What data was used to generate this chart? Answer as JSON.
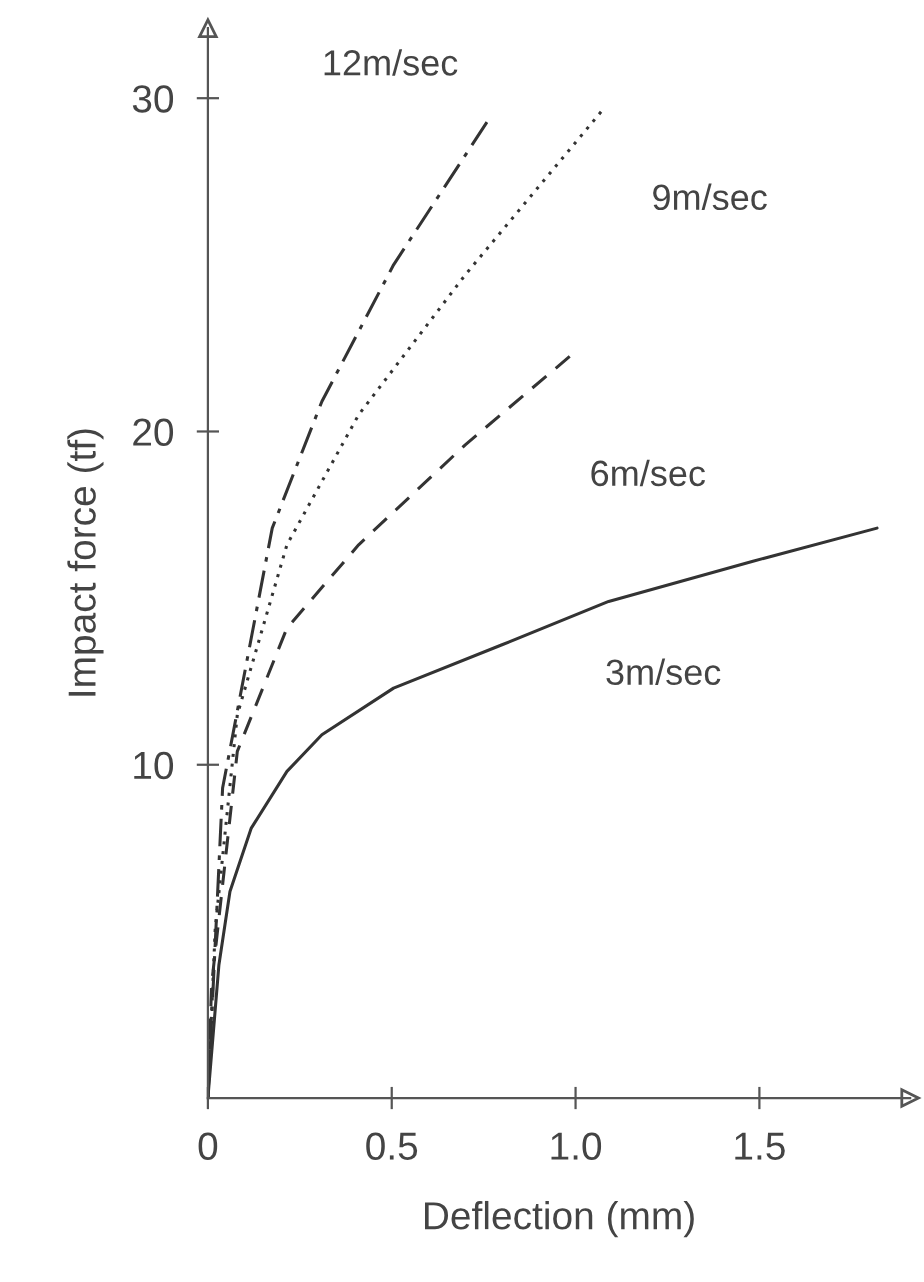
{
  "chart_data": {
    "type": "line",
    "xlabel": "Deflection (mm)",
    "ylabel": "Impact force (tf)",
    "xlim": [
      0,
      1.91
    ],
    "ylim": [
      0,
      32.1
    ],
    "xticks": [
      {
        "value": 0,
        "label": "0"
      },
      0.5,
      {
        "value": 1.0,
        "label": "1.0"
      },
      1.5
    ],
    "yticks": [
      10,
      20,
      30
    ],
    "grid": false,
    "marker": "none",
    "series": [
      {
        "name": "12m/sec",
        "color": "#333333",
        "line_style": "dashdot",
        "x": [
          0,
          0.04,
          0.175,
          0.31,
          0.505,
          0.76
        ],
        "values": [
          0,
          9.3,
          17.1,
          20.9,
          25.0,
          29.3
        ]
      },
      {
        "name": "9m/sec",
        "color": "#333333",
        "line_style": "dotted",
        "x": [
          0,
          0.02,
          0.08,
          0.215,
          0.41,
          0.7,
          1.07
        ],
        "values": [
          0,
          5.1,
          11.5,
          16.6,
          20.5,
          24.7,
          29.6
        ]
      },
      {
        "name": "6m/sec",
        "color": "#333333",
        "line_style": "dashed",
        "x": [
          0,
          0.01,
          0.08,
          0.215,
          0.41,
          0.7,
          1.0
        ],
        "values": [
          0,
          3.4,
          10.4,
          14.1,
          16.6,
          19.6,
          22.4
        ]
      },
      {
        "name": "3m/sec",
        "color": "#333333",
        "line_style": "solid",
        "x": [
          0,
          0.03,
          0.06,
          0.118,
          0.215,
          0.31,
          0.505,
          0.8,
          1.09,
          1.48,
          1.82
        ],
        "values": [
          0,
          4.0,
          6.2,
          8.1,
          9.8,
          10.9,
          12.3,
          13.6,
          14.9,
          16.1,
          17.1
        ]
      }
    ]
  }
}
